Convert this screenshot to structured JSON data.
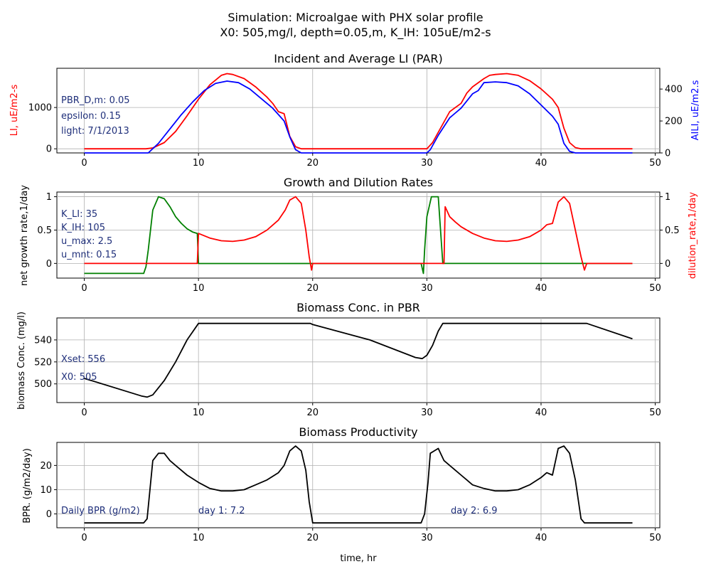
{
  "figure": {
    "title_line1": "Simulation: Microalgae with PHX solar profile",
    "title_line2": "X0: 505,mg/l, depth=0.05,m, K_IH: 105uE/m2-s",
    "xlabel": "time, hr"
  },
  "colors": {
    "red": "#ff0000",
    "blue": "#0000ff",
    "green": "#008000",
    "black": "#000000",
    "annotation": "#1f2f7a",
    "grid": "#b0b0b0"
  },
  "panels": [
    {
      "title": "Incident and Average LI (PAR)",
      "ylabel_left": "LI, uE/m2-s",
      "ylabel_right": "AILI, uE/m2.s",
      "annotations": [
        "PBR_D,m: 0.05",
        "epsilon: 0.15",
        "light: 7/1/2013"
      ]
    },
    {
      "title": "Growth and Dilution Rates",
      "ylabel_left": "net growth rate,1/day",
      "ylabel_right": "dilution_rate,1/day",
      "annotations": [
        "K_LI: 35",
        "K_IH: 105",
        "u_max: 2.5",
        "u_mnt: 0.15"
      ]
    },
    {
      "title": "Biomass Conc. in PBR",
      "ylabel_left": "biomass Conc. (mg/l)",
      "annotations": [
        "Xset: 556",
        "X0: 505"
      ]
    },
    {
      "title": "Biomass Productivity",
      "ylabel_left": "BPR. (g/m2/day)",
      "annotations": [
        "Daily BPR (g/m2)",
        "day 1: 7.2",
        "day 2: 6.9"
      ]
    }
  ],
  "chart_data": [
    {
      "type": "line",
      "title": "Incident and Average LI (PAR)",
      "xlim": [
        -2.4,
        50.4
      ],
      "ylim_left": [
        -100,
        1950
      ],
      "ylim_right": [
        0,
        530
      ],
      "xticks": [
        0,
        10,
        20,
        30,
        40,
        50
      ],
      "yticks_left": [
        0,
        1000
      ],
      "yticks_right": [
        0,
        200,
        400
      ],
      "grid": true,
      "series": [
        {
          "name": "LI",
          "axis": "left",
          "color": "red",
          "points": [
            [
              0,
              0
            ],
            [
              5.4,
              0
            ],
            [
              6,
              20
            ],
            [
              7,
              150
            ],
            [
              8,
              420
            ],
            [
              9,
              800
            ],
            [
              10,
              1200
            ],
            [
              11,
              1550
            ],
            [
              12,
              1780
            ],
            [
              12.5,
              1820
            ],
            [
              13,
              1800
            ],
            [
              14,
              1700
            ],
            [
              15,
              1500
            ],
            [
              16,
              1250
            ],
            [
              16.5,
              1100
            ],
            [
              17,
              900
            ],
            [
              17.5,
              850
            ],
            [
              18,
              300
            ],
            [
              18.5,
              50
            ],
            [
              19,
              0
            ],
            [
              30,
              0
            ],
            [
              30.5,
              150
            ],
            [
              31,
              400
            ],
            [
              32,
              900
            ],
            [
              33,
              1100
            ],
            [
              33.5,
              1350
            ],
            [
              34,
              1500
            ],
            [
              35,
              1700
            ],
            [
              35.5,
              1780
            ],
            [
              36,
              1800
            ],
            [
              37,
              1820
            ],
            [
              38,
              1780
            ],
            [
              39,
              1650
            ],
            [
              40,
              1450
            ],
            [
              41,
              1200
            ],
            [
              41.5,
              1000
            ],
            [
              42,
              500
            ],
            [
              42.5,
              150
            ],
            [
              43,
              30
            ],
            [
              43.5,
              0
            ],
            [
              48,
              0
            ]
          ]
        },
        {
          "name": "AILI",
          "axis": "right",
          "color": "blue",
          "points": [
            [
              0,
              0
            ],
            [
              5.6,
              0
            ],
            [
              6.5,
              60
            ],
            [
              7.5,
              150
            ],
            [
              8.5,
              240
            ],
            [
              9.5,
              320
            ],
            [
              10.5,
              390
            ],
            [
              11.5,
              435
            ],
            [
              12.5,
              450
            ],
            [
              13.5,
              440
            ],
            [
              14.5,
              400
            ],
            [
              15.5,
              340
            ],
            [
              16.5,
              280
            ],
            [
              17,
              240
            ],
            [
              17.5,
              200
            ],
            [
              18,
              100
            ],
            [
              18.5,
              20
            ],
            [
              19,
              0
            ],
            [
              30,
              0
            ],
            [
              30.3,
              20
            ],
            [
              31,
              110
            ],
            [
              32,
              220
            ],
            [
              33,
              280
            ],
            [
              34,
              370
            ],
            [
              34.5,
              390
            ],
            [
              35,
              440
            ],
            [
              36,
              445
            ],
            [
              37,
              440
            ],
            [
              38,
              420
            ],
            [
              39,
              370
            ],
            [
              40,
              300
            ],
            [
              41,
              230
            ],
            [
              41.5,
              180
            ],
            [
              42,
              60
            ],
            [
              42.5,
              10
            ],
            [
              43,
              0
            ],
            [
              48,
              0
            ]
          ]
        }
      ]
    },
    {
      "type": "line",
      "title": "Growth and Dilution Rates",
      "xlim": [
        -2.4,
        50.4
      ],
      "ylim_left": [
        -0.22,
        1.07
      ],
      "ylim_right": [
        -0.22,
        1.07
      ],
      "xticks": [
        0,
        10,
        20,
        30,
        40,
        50
      ],
      "yticks_left": [
        0,
        0.5,
        1
      ],
      "yticks_right": [
        0,
        0.5,
        1
      ],
      "grid": true,
      "series": [
        {
          "name": "net growth rate",
          "axis": "left",
          "color": "green",
          "points": [
            [
              0,
              -0.15
            ],
            [
              5.2,
              -0.15
            ],
            [
              5.4,
              -0.05
            ],
            [
              5.6,
              0.2
            ],
            [
              6,
              0.8
            ],
            [
              6.5,
              1
            ],
            [
              7,
              0.97
            ],
            [
              7.5,
              0.85
            ],
            [
              8,
              0.7
            ],
            [
              8.5,
              0.6
            ],
            [
              9,
              0.52
            ],
            [
              9.5,
              0.47
            ],
            [
              9.9,
              0.45
            ],
            [
              10,
              -0.001
            ],
            [
              29.5,
              0
            ],
            [
              29.7,
              -0.15
            ],
            [
              29.8,
              0.2
            ],
            [
              30,
              0.7
            ],
            [
              30.4,
              1
            ],
            [
              31,
              1
            ],
            [
              31.4,
              0
            ],
            [
              48,
              0
            ]
          ]
        },
        {
          "name": "dilution_rate",
          "axis": "right",
          "color": "red",
          "points": [
            [
              0,
              0
            ],
            [
              9.9,
              0
            ],
            [
              10,
              0.45
            ],
            [
              11,
              0.38
            ],
            [
              12,
              0.34
            ],
            [
              13,
              0.33
            ],
            [
              14,
              0.35
            ],
            [
              15,
              0.4
            ],
            [
              16,
              0.5
            ],
            [
              17,
              0.65
            ],
            [
              17.6,
              0.8
            ],
            [
              18,
              0.95
            ],
            [
              18.5,
              1
            ],
            [
              19,
              0.9
            ],
            [
              19.4,
              0.5
            ],
            [
              19.7,
              0.1
            ],
            [
              19.9,
              -0.1
            ],
            [
              20,
              0
            ],
            [
              31.5,
              0
            ],
            [
              31.6,
              0.85
            ],
            [
              32,
              0.7
            ],
            [
              32.5,
              0.62
            ],
            [
              33,
              0.55
            ],
            [
              34,
              0.45
            ],
            [
              35,
              0.38
            ],
            [
              36,
              0.34
            ],
            [
              37,
              0.33
            ],
            [
              38,
              0.35
            ],
            [
              39,
              0.4
            ],
            [
              40,
              0.5
            ],
            [
              40.5,
              0.58
            ],
            [
              41,
              0.6
            ],
            [
              41.5,
              0.92
            ],
            [
              42,
              1
            ],
            [
              42.5,
              0.9
            ],
            [
              43,
              0.5
            ],
            [
              43.5,
              0.1
            ],
            [
              43.8,
              -0.1
            ],
            [
              44,
              0
            ],
            [
              48,
              0
            ]
          ]
        }
      ]
    },
    {
      "type": "line",
      "title": "Biomass Conc. in PBR",
      "xlim": [
        -2.4,
        50.4
      ],
      "ylim_left": [
        483,
        560
      ],
      "xticks": [
        0,
        10,
        20,
        30,
        40,
        50
      ],
      "yticks_left": [
        500,
        520,
        540
      ],
      "grid": true,
      "series": [
        {
          "name": "biomass",
          "axis": "left",
          "color": "black",
          "points": [
            [
              0,
              505
            ],
            [
              5,
              489
            ],
            [
              5.5,
              488
            ],
            [
              6,
              490
            ],
            [
              7,
              503
            ],
            [
              8,
              520
            ],
            [
              9,
              540
            ],
            [
              10,
              555
            ],
            [
              19.8,
              555
            ],
            [
              20,
              554
            ],
            [
              25,
              540
            ],
            [
              29,
              524
            ],
            [
              29.6,
              523
            ],
            [
              30,
              526
            ],
            [
              30.5,
              535
            ],
            [
              31,
              548
            ],
            [
              31.4,
              555
            ],
            [
              44,
              555
            ],
            [
              48,
              541
            ]
          ]
        }
      ]
    },
    {
      "type": "line",
      "title": "Biomass Productivity",
      "xlim": [
        -2.4,
        50.4
      ],
      "ylim_left": [
        -5.7,
        29.5
      ],
      "xticks": [
        0,
        10,
        20,
        30,
        40,
        50
      ],
      "yticks_left": [
        0,
        10,
        20
      ],
      "grid": true,
      "series": [
        {
          "name": "BPR",
          "axis": "left",
          "color": "black",
          "points": [
            [
              0,
              -3.7
            ],
            [
              5.2,
              -3.7
            ],
            [
              5.5,
              -2
            ],
            [
              6,
              22
            ],
            [
              6.5,
              25
            ],
            [
              7,
              25
            ],
            [
              7.5,
              22
            ],
            [
              8,
              20
            ],
            [
              9,
              16
            ],
            [
              10,
              13
            ],
            [
              11,
              10.5
            ],
            [
              12,
              9.5
            ],
            [
              13,
              9.5
            ],
            [
              14,
              10
            ],
            [
              15,
              12
            ],
            [
              16,
              14
            ],
            [
              17,
              17
            ],
            [
              17.5,
              20
            ],
            [
              18,
              26
            ],
            [
              18.5,
              28
            ],
            [
              19,
              26
            ],
            [
              19.4,
              18
            ],
            [
              19.7,
              5
            ],
            [
              20,
              -3.7
            ],
            [
              29.5,
              -3.7
            ],
            [
              29.8,
              0
            ],
            [
              30.1,
              13
            ],
            [
              30.3,
              25
            ],
            [
              31,
              27
            ],
            [
              31.5,
              22
            ],
            [
              32,
              20
            ],
            [
              32.5,
              18
            ],
            [
              33,
              16
            ],
            [
              33.5,
              14
            ],
            [
              34,
              12
            ],
            [
              35,
              10.5
            ],
            [
              36,
              9.5
            ],
            [
              37,
              9.5
            ],
            [
              38,
              10
            ],
            [
              39,
              12
            ],
            [
              40,
              15
            ],
            [
              40.5,
              17
            ],
            [
              41,
              16
            ],
            [
              41.5,
              27
            ],
            [
              42,
              28
            ],
            [
              42.5,
              25
            ],
            [
              43,
              14
            ],
            [
              43.5,
              -2
            ],
            [
              43.8,
              -3.7
            ],
            [
              48,
              -3.7
            ]
          ]
        }
      ]
    }
  ]
}
